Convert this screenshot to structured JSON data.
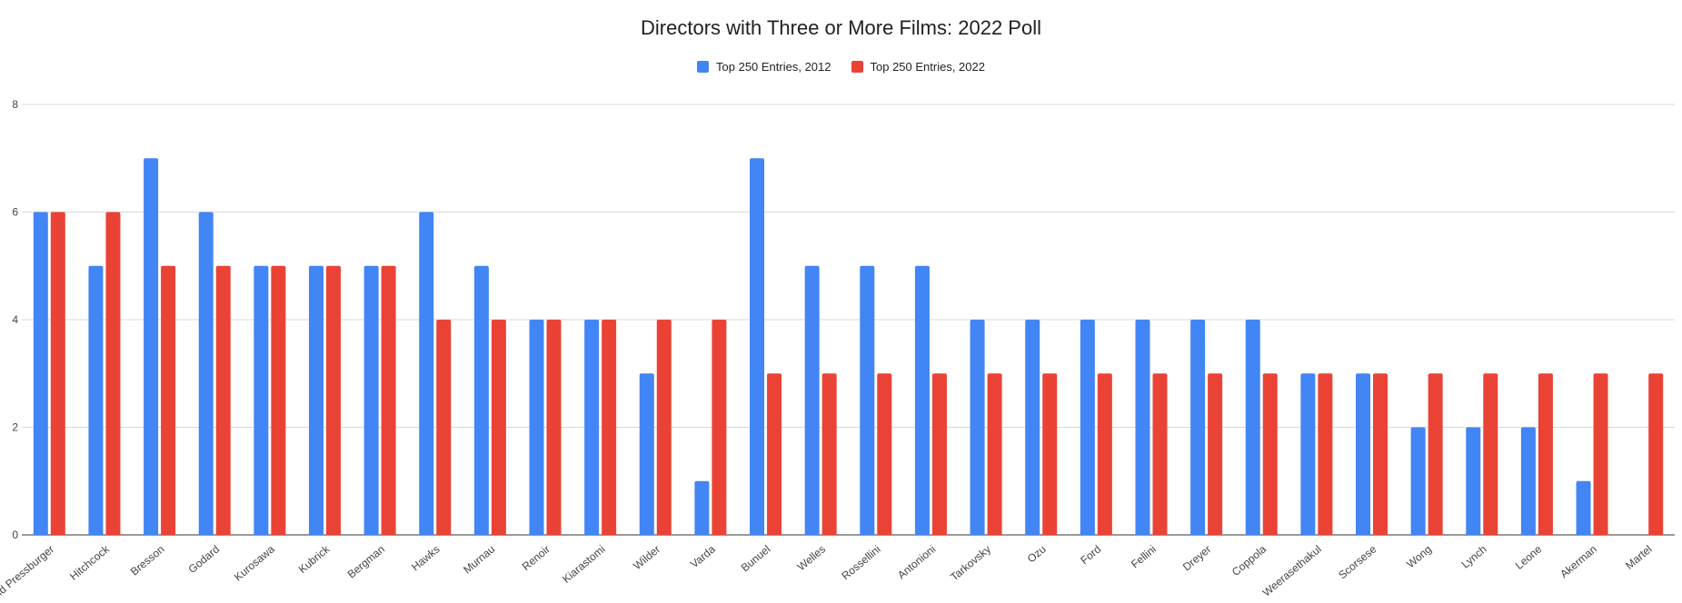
{
  "chart_data": {
    "type": "bar",
    "title": "Directors with Three or More Films: 2022 Poll",
    "xlabel": "",
    "ylabel": "",
    "ylim": [
      0,
      8
    ],
    "yticks": [
      0,
      2,
      4,
      6,
      8
    ],
    "grid": true,
    "legend_position": "top",
    "categories": [
      "Powell and Pressburger",
      "Hitchcock",
      "Bresson",
      "Godard",
      "Kurosawa",
      "Kubrick",
      "Bergman",
      "Hawks",
      "Murnau",
      "Renoir",
      "Kiarastomi",
      "Wilder",
      "Varda",
      "Bunuel",
      "Welles",
      "Rossellini",
      "Antonioni",
      "Tarkovsky",
      "Ozu",
      "Ford",
      "Fellini",
      "Dreyer",
      "Coppola",
      "Weerasethakul",
      "Scorsese",
      "Wong",
      "Lynch",
      "Leone",
      "Akerman",
      "Martel"
    ],
    "series": [
      {
        "name": "Top 250 Entries, 2012",
        "color": "#4285f4",
        "values": [
          6,
          5,
          7,
          6,
          5,
          5,
          5,
          6,
          5,
          4,
          4,
          3,
          1,
          7,
          5,
          5,
          5,
          4,
          4,
          4,
          4,
          4,
          4,
          3,
          3,
          2,
          2,
          2,
          1,
          0
        ]
      },
      {
        "name": "Top 250 Entries, 2022",
        "color": "#ea4335",
        "values": [
          6,
          6,
          5,
          5,
          5,
          5,
          5,
          4,
          4,
          4,
          4,
          4,
          4,
          3,
          3,
          3,
          3,
          3,
          3,
          3,
          3,
          3,
          3,
          3,
          3,
          3,
          3,
          3,
          3,
          3
        ]
      }
    ]
  }
}
